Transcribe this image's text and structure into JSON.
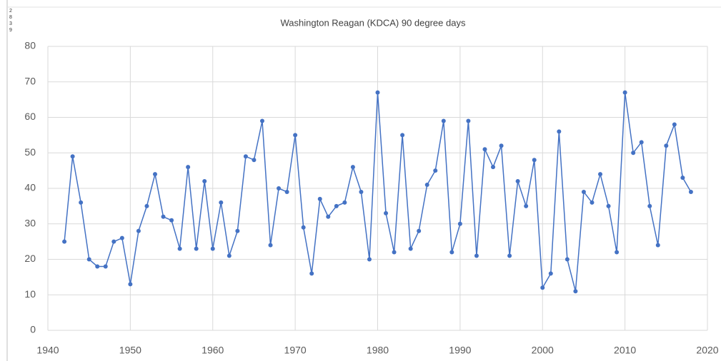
{
  "chart_data": {
    "type": "line",
    "title": "Washington Reagan (KDCA) 90 degree days",
    "side_fragments": [
      "2",
      "8",
      "3",
      "9"
    ],
    "x": [
      1942,
      1943,
      1944,
      1945,
      1946,
      1947,
      1948,
      1949,
      1950,
      1951,
      1952,
      1953,
      1954,
      1955,
      1956,
      1957,
      1958,
      1959,
      1960,
      1961,
      1962,
      1963,
      1964,
      1965,
      1966,
      1967,
      1968,
      1969,
      1970,
      1971,
      1972,
      1973,
      1974,
      1975,
      1976,
      1977,
      1978,
      1979,
      1980,
      1981,
      1982,
      1983,
      1984,
      1985,
      1986,
      1987,
      1988,
      1989,
      1990,
      1991,
      1992,
      1993,
      1994,
      1995,
      1996,
      1997,
      1998,
      1999,
      2000,
      2001,
      2002,
      2003,
      2004,
      2005,
      2006,
      2007,
      2008,
      2009,
      2010,
      2011,
      2012,
      2013,
      2014,
      2015,
      2016,
      2017,
      2018
    ],
    "series": [
      {
        "color": "#4472c4",
        "values": [
          25,
          49,
          36,
          20,
          18,
          18,
          25,
          26,
          13,
          28,
          35,
          44,
          32,
          31,
          23,
          46,
          23,
          42,
          23,
          36,
          21,
          28,
          49,
          48,
          59,
          24,
          40,
          39,
          55,
          29,
          16,
          37,
          32,
          35,
          36,
          46,
          39,
          20,
          67,
          33,
          22,
          55,
          23,
          28,
          41,
          45,
          59,
          22,
          30,
          59,
          21,
          51,
          46,
          52,
          21,
          42,
          35,
          48,
          12,
          16,
          56,
          20,
          11,
          39,
          36,
          44,
          35,
          22,
          67,
          50,
          53,
          35,
          24,
          52,
          58,
          43,
          39
        ]
      }
    ],
    "xlim": [
      1940,
      2020
    ],
    "xticks": [
      1940,
      1950,
      1960,
      1970,
      1980,
      1990,
      2000,
      2010,
      2020
    ],
    "ylim": [
      0,
      80
    ],
    "yticks": [
      0,
      10,
      20,
      30,
      40,
      50,
      60,
      70,
      80
    ],
    "grid": true
  }
}
